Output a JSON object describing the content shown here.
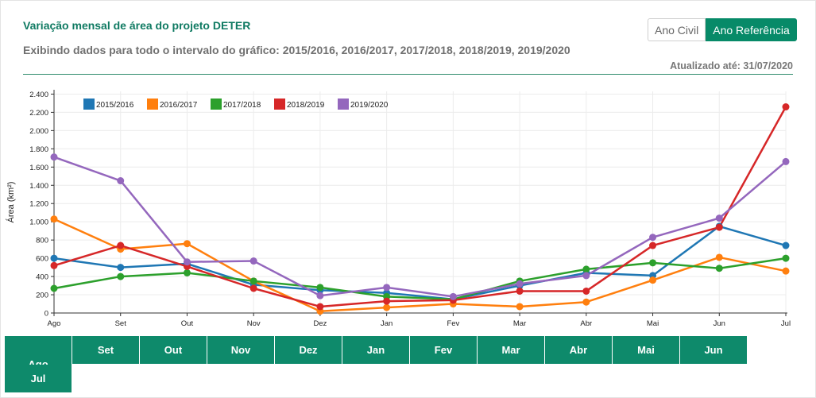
{
  "header": {
    "title": "Variação mensal de área do projeto DETER",
    "subtitle": "Exibindo dados para todo o intervalo do gráfico: 2015/2016, 2016/2017, 2017/2018, 2018/2019, 2019/2020",
    "updated": "Atualizado até: 31/07/2020",
    "toggle_civil": "Ano Civil",
    "toggle_reference": "Ano Referência"
  },
  "month_buttons": [
    "Ago",
    "Set",
    "Out",
    "Nov",
    "Dez",
    "Jan",
    "Fev",
    "Mar",
    "Abr",
    "Mai",
    "Jun",
    "Jul"
  ],
  "chart_data": {
    "type": "line",
    "title": "",
    "xlabel": "",
    "ylabel": "Área (km²)",
    "categories": [
      "Ago",
      "Set",
      "Out",
      "Nov",
      "Dez",
      "Jan",
      "Fev",
      "Mar",
      "Abr",
      "Mai",
      "Jun",
      "Jul"
    ],
    "ylim": [
      0,
      2500
    ],
    "yticks": [
      0,
      200,
      400,
      600,
      800,
      1000,
      1200,
      1400,
      1600,
      1800,
      2000,
      2200,
      2400
    ],
    "ytick_labels": [
      "0",
      "200",
      "400",
      "600",
      "800",
      "1.000",
      "1.200",
      "1.400",
      "1.600",
      "1.800",
      "2.000",
      "2.200",
      "2.400"
    ],
    "grid": true,
    "legend_position": "top-left",
    "series": [
      {
        "name": "2015/2016",
        "color": "#1f77b4",
        "values": [
          600,
          500,
          540,
          310,
          250,
          220,
          150,
          300,
          440,
          410,
          950,
          740
        ]
      },
      {
        "name": "2016/2017",
        "color": "#ff7f0e",
        "values": [
          1030,
          700,
          760,
          350,
          20,
          60,
          100,
          70,
          120,
          360,
          610,
          460
        ]
      },
      {
        "name": "2017/2018",
        "color": "#2ca02c",
        "values": [
          270,
          400,
          440,
          350,
          280,
          180,
          150,
          350,
          480,
          550,
          490,
          600
        ]
      },
      {
        "name": "2018/2019",
        "color": "#d62728",
        "values": [
          520,
          740,
          510,
          270,
          70,
          130,
          140,
          240,
          240,
          740,
          940,
          2260
        ]
      },
      {
        "name": "2019/2020",
        "color": "#9467bd",
        "values": [
          1710,
          1450,
          560,
          570,
          190,
          280,
          180,
          320,
          410,
          830,
          1040,
          1660
        ]
      }
    ]
  }
}
